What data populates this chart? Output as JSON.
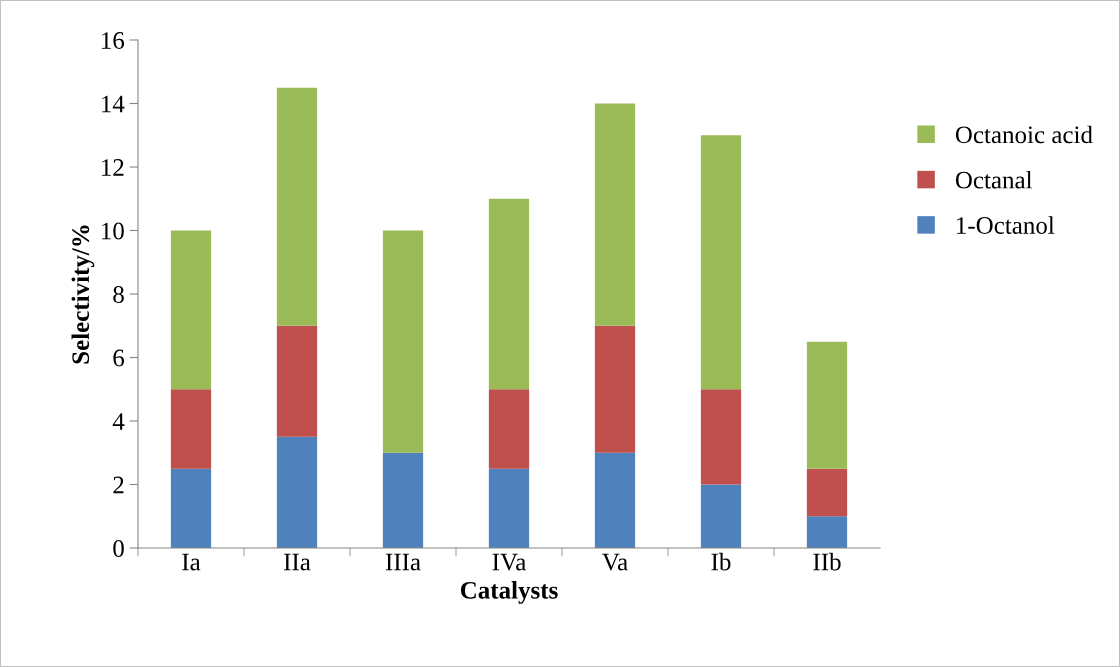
{
  "chart_data": {
    "type": "bar",
    "stacked": true,
    "xlabel": "Catalysts",
    "ylabel": "Selectivity/%",
    "categories": [
      "Ia",
      "IIa",
      "IIIa",
      "IVa",
      "Va",
      "Ib",
      "IIb"
    ],
    "series": [
      {
        "name": "1-Octanol",
        "color": "#4f81bd",
        "values": [
          2.5,
          3.5,
          3,
          2.5,
          3,
          2,
          1
        ]
      },
      {
        "name": "Octanal",
        "color": "#c0504d",
        "values": [
          2.5,
          3.5,
          0,
          2.5,
          4,
          3,
          1.5
        ]
      },
      {
        "name": "Octanoic acid",
        "color": "#9bbb59",
        "values": [
          5,
          7.5,
          7,
          6,
          7,
          8,
          4
        ]
      }
    ],
    "ylim": [
      0,
      16
    ],
    "yticks": [
      0,
      2,
      4,
      6,
      8,
      10,
      12,
      14,
      16
    ],
    "grid": false,
    "legend": "right"
  }
}
